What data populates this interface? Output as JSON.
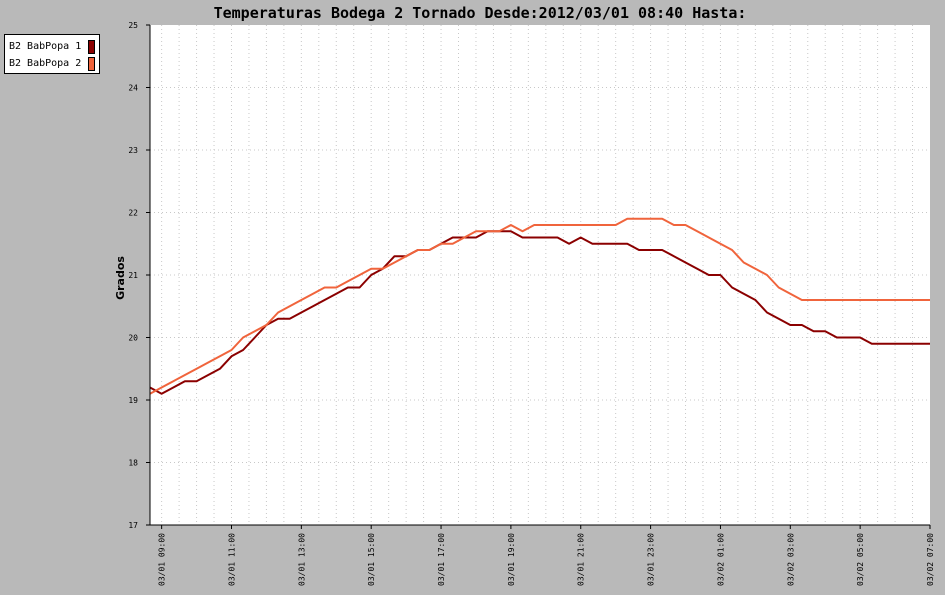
{
  "chart_data": {
    "type": "line",
    "title": "Temperaturas Bodega 2 Tornado Desde:2012/03/01 08:40 Hasta:",
    "xlabel": "",
    "ylabel": "Grados",
    "ylim": [
      17,
      25
    ],
    "yticks": [
      17,
      18,
      19,
      20,
      21,
      22,
      23,
      24,
      25
    ],
    "xlim": [
      "2012-03-01 08:40",
      "2012-03-02 07:00"
    ],
    "xticks": [
      {
        "label": "03/01 09:00",
        "t": "2012-03-01 09:00"
      },
      {
        "label": "03/01 11:00",
        "t": "2012-03-01 11:00"
      },
      {
        "label": "03/01 13:00",
        "t": "2012-03-01 13:00"
      },
      {
        "label": "03/01 15:00",
        "t": "2012-03-01 15:00"
      },
      {
        "label": "03/01 17:00",
        "t": "2012-03-01 17:00"
      },
      {
        "label": "03/01 19:00",
        "t": "2012-03-01 19:00"
      },
      {
        "label": "03/01 21:00",
        "t": "2012-03-01 21:00"
      },
      {
        "label": "03/01 23:00",
        "t": "2012-03-01 23:00"
      },
      {
        "label": "03/02 01:00",
        "t": "2012-03-02 01:00"
      },
      {
        "label": "03/02 03:00",
        "t": "2012-03-02 03:00"
      },
      {
        "label": "03/02 05:00",
        "t": "2012-03-02 05:00"
      },
      {
        "label": "03/02 07:00",
        "t": "2012-03-02 07:00"
      }
    ],
    "grid": true,
    "legend": "top-left",
    "series": [
      {
        "name": "B2 BabPopa 1",
        "color": "#8b0000",
        "points": [
          [
            "2012-03-01 08:40",
            19.2
          ],
          [
            "2012-03-01 09:00",
            19.1
          ],
          [
            "2012-03-01 09:20",
            19.2
          ],
          [
            "2012-03-01 09:40",
            19.3
          ],
          [
            "2012-03-01 10:00",
            19.3
          ],
          [
            "2012-03-01 10:20",
            19.4
          ],
          [
            "2012-03-01 10:40",
            19.5
          ],
          [
            "2012-03-01 11:00",
            19.7
          ],
          [
            "2012-03-01 11:20",
            19.8
          ],
          [
            "2012-03-01 11:40",
            20.0
          ],
          [
            "2012-03-01 12:00",
            20.2
          ],
          [
            "2012-03-01 12:20",
            20.3
          ],
          [
            "2012-03-01 12:40",
            20.3
          ],
          [
            "2012-03-01 13:00",
            20.4
          ],
          [
            "2012-03-01 13:20",
            20.5
          ],
          [
            "2012-03-01 13:40",
            20.6
          ],
          [
            "2012-03-01 14:00",
            20.7
          ],
          [
            "2012-03-01 14:20",
            20.8
          ],
          [
            "2012-03-01 14:40",
            20.8
          ],
          [
            "2012-03-01 15:00",
            21.0
          ],
          [
            "2012-03-01 15:20",
            21.1
          ],
          [
            "2012-03-01 15:40",
            21.3
          ],
          [
            "2012-03-01 16:00",
            21.3
          ],
          [
            "2012-03-01 16:20",
            21.4
          ],
          [
            "2012-03-01 16:40",
            21.4
          ],
          [
            "2012-03-01 17:00",
            21.5
          ],
          [
            "2012-03-01 17:20",
            21.6
          ],
          [
            "2012-03-01 17:40",
            21.6
          ],
          [
            "2012-03-01 18:00",
            21.6
          ],
          [
            "2012-03-01 18:20",
            21.7
          ],
          [
            "2012-03-01 18:40",
            21.7
          ],
          [
            "2012-03-01 19:00",
            21.7
          ],
          [
            "2012-03-01 19:20",
            21.6
          ],
          [
            "2012-03-01 19:40",
            21.6
          ],
          [
            "2012-03-01 20:00",
            21.6
          ],
          [
            "2012-03-01 20:20",
            21.6
          ],
          [
            "2012-03-01 20:40",
            21.5
          ],
          [
            "2012-03-01 21:00",
            21.6
          ],
          [
            "2012-03-01 21:20",
            21.5
          ],
          [
            "2012-03-01 21:40",
            21.5
          ],
          [
            "2012-03-01 22:00",
            21.5
          ],
          [
            "2012-03-01 22:20",
            21.5
          ],
          [
            "2012-03-01 22:40",
            21.4
          ],
          [
            "2012-03-01 23:00",
            21.4
          ],
          [
            "2012-03-01 23:20",
            21.4
          ],
          [
            "2012-03-01 23:40",
            21.3
          ],
          [
            "2012-03-02 00:00",
            21.2
          ],
          [
            "2012-03-02 00:20",
            21.1
          ],
          [
            "2012-03-02 00:40",
            21.0
          ],
          [
            "2012-03-02 01:00",
            21.0
          ],
          [
            "2012-03-02 01:20",
            20.8
          ],
          [
            "2012-03-02 01:40",
            20.7
          ],
          [
            "2012-03-02 02:00",
            20.6
          ],
          [
            "2012-03-02 02:20",
            20.4
          ],
          [
            "2012-03-02 02:40",
            20.3
          ],
          [
            "2012-03-02 03:00",
            20.2
          ],
          [
            "2012-03-02 03:20",
            20.2
          ],
          [
            "2012-03-02 03:40",
            20.1
          ],
          [
            "2012-03-02 04:00",
            20.1
          ],
          [
            "2012-03-02 04:20",
            20.0
          ],
          [
            "2012-03-02 04:40",
            20.0
          ],
          [
            "2012-03-02 05:00",
            20.0
          ],
          [
            "2012-03-02 05:20",
            19.9
          ],
          [
            "2012-03-02 05:40",
            19.9
          ],
          [
            "2012-03-02 06:00",
            19.9
          ],
          [
            "2012-03-02 06:20",
            19.9
          ],
          [
            "2012-03-02 06:40",
            19.9
          ],
          [
            "2012-03-02 07:00",
            19.9
          ]
        ]
      },
      {
        "name": "B2 BabPopa 2",
        "color": "#f0643c",
        "points": [
          [
            "2012-03-01 08:40",
            19.1
          ],
          [
            "2012-03-01 09:00",
            19.2
          ],
          [
            "2012-03-01 09:20",
            19.3
          ],
          [
            "2012-03-01 09:40",
            19.4
          ],
          [
            "2012-03-01 10:00",
            19.5
          ],
          [
            "2012-03-01 10:20",
            19.6
          ],
          [
            "2012-03-01 10:40",
            19.7
          ],
          [
            "2012-03-01 11:00",
            19.8
          ],
          [
            "2012-03-01 11:20",
            20.0
          ],
          [
            "2012-03-01 11:40",
            20.1
          ],
          [
            "2012-03-01 12:00",
            20.2
          ],
          [
            "2012-03-01 12:20",
            20.4
          ],
          [
            "2012-03-01 12:40",
            20.5
          ],
          [
            "2012-03-01 13:00",
            20.6
          ],
          [
            "2012-03-01 13:20",
            20.7
          ],
          [
            "2012-03-01 13:40",
            20.8
          ],
          [
            "2012-03-01 14:00",
            20.8
          ],
          [
            "2012-03-01 14:20",
            20.9
          ],
          [
            "2012-03-01 14:40",
            21.0
          ],
          [
            "2012-03-01 15:00",
            21.1
          ],
          [
            "2012-03-01 15:20",
            21.1
          ],
          [
            "2012-03-01 15:40",
            21.2
          ],
          [
            "2012-03-01 16:00",
            21.3
          ],
          [
            "2012-03-01 16:20",
            21.4
          ],
          [
            "2012-03-01 16:40",
            21.4
          ],
          [
            "2012-03-01 17:00",
            21.5
          ],
          [
            "2012-03-01 17:20",
            21.5
          ],
          [
            "2012-03-01 17:40",
            21.6
          ],
          [
            "2012-03-01 18:00",
            21.7
          ],
          [
            "2012-03-01 18:20",
            21.7
          ],
          [
            "2012-03-01 18:40",
            21.7
          ],
          [
            "2012-03-01 19:00",
            21.8
          ],
          [
            "2012-03-01 19:20",
            21.7
          ],
          [
            "2012-03-01 19:40",
            21.8
          ],
          [
            "2012-03-01 20:00",
            21.8
          ],
          [
            "2012-03-01 20:20",
            21.8
          ],
          [
            "2012-03-01 20:40",
            21.8
          ],
          [
            "2012-03-01 21:00",
            21.8
          ],
          [
            "2012-03-01 21:20",
            21.8
          ],
          [
            "2012-03-01 21:40",
            21.8
          ],
          [
            "2012-03-01 22:00",
            21.8
          ],
          [
            "2012-03-01 22:20",
            21.9
          ],
          [
            "2012-03-01 22:40",
            21.9
          ],
          [
            "2012-03-01 23:00",
            21.9
          ],
          [
            "2012-03-01 23:20",
            21.9
          ],
          [
            "2012-03-01 23:40",
            21.8
          ],
          [
            "2012-03-02 00:00",
            21.8
          ],
          [
            "2012-03-02 00:20",
            21.7
          ],
          [
            "2012-03-02 00:40",
            21.6
          ],
          [
            "2012-03-02 01:00",
            21.5
          ],
          [
            "2012-03-02 01:20",
            21.4
          ],
          [
            "2012-03-02 01:40",
            21.2
          ],
          [
            "2012-03-02 02:00",
            21.1
          ],
          [
            "2012-03-02 02:20",
            21.0
          ],
          [
            "2012-03-02 02:40",
            20.8
          ],
          [
            "2012-03-02 03:00",
            20.7
          ],
          [
            "2012-03-02 03:20",
            20.6
          ],
          [
            "2012-03-02 03:40",
            20.6
          ],
          [
            "2012-03-02 04:00",
            20.6
          ],
          [
            "2012-03-02 04:20",
            20.6
          ],
          [
            "2012-03-02 04:40",
            20.6
          ],
          [
            "2012-03-02 05:00",
            20.6
          ],
          [
            "2012-03-02 05:20",
            20.6
          ],
          [
            "2012-03-02 05:40",
            20.6
          ],
          [
            "2012-03-02 06:00",
            20.6
          ],
          [
            "2012-03-02 06:20",
            20.6
          ],
          [
            "2012-03-02 06:40",
            20.6
          ],
          [
            "2012-03-02 07:00",
            20.6
          ]
        ]
      }
    ]
  }
}
